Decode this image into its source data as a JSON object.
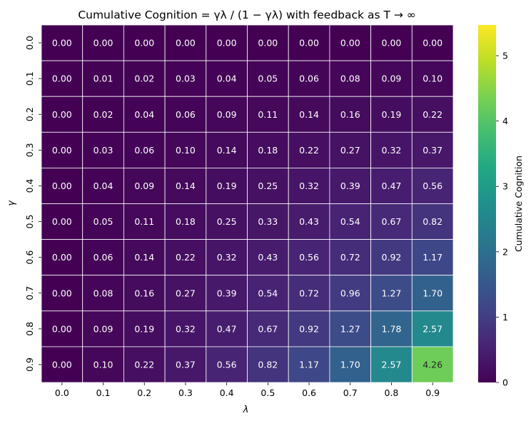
{
  "chart_data": {
    "type": "heatmap",
    "title": "Cumulative Cognition = γλ / (1 − γλ) with feedback as T → ∞",
    "xlabel": "λ",
    "ylabel": "γ",
    "x_categories": [
      "0.0",
      "0.1",
      "0.2",
      "0.3",
      "0.4",
      "0.5",
      "0.6",
      "0.7",
      "0.8",
      "0.9"
    ],
    "y_categories": [
      "0.0",
      "0.1",
      "0.2",
      "0.3",
      "0.4",
      "0.5",
      "0.6",
      "0.7",
      "0.8",
      "0.9"
    ],
    "values": [
      [
        0.0,
        0.0,
        0.0,
        0.0,
        0.0,
        0.0,
        0.0,
        0.0,
        0.0,
        0.0
      ],
      [
        0.0,
        0.01,
        0.02,
        0.03,
        0.04,
        0.05,
        0.06,
        0.08,
        0.09,
        0.1
      ],
      [
        0.0,
        0.02,
        0.04,
        0.06,
        0.09,
        0.11,
        0.14,
        0.16,
        0.19,
        0.22
      ],
      [
        0.0,
        0.03,
        0.06,
        0.1,
        0.14,
        0.18,
        0.22,
        0.27,
        0.32,
        0.37
      ],
      [
        0.0,
        0.04,
        0.09,
        0.14,
        0.19,
        0.25,
        0.32,
        0.39,
        0.47,
        0.56
      ],
      [
        0.0,
        0.05,
        0.11,
        0.18,
        0.25,
        0.33,
        0.43,
        0.54,
        0.67,
        0.82
      ],
      [
        0.0,
        0.06,
        0.14,
        0.22,
        0.32,
        0.43,
        0.56,
        0.72,
        0.92,
        1.17
      ],
      [
        0.0,
        0.08,
        0.16,
        0.27,
        0.39,
        0.54,
        0.72,
        0.96,
        1.27,
        1.7
      ],
      [
        0.0,
        0.09,
        0.19,
        0.32,
        0.47,
        0.67,
        0.92,
        1.27,
        1.78,
        2.57
      ],
      [
        0.0,
        0.1,
        0.22,
        0.37,
        0.56,
        0.82,
        1.17,
        1.7,
        2.57,
        4.26
      ]
    ],
    "colorbar": {
      "label": "Cumulative Cognition",
      "ticks": [
        0,
        1,
        2,
        3,
        4,
        5
      ],
      "vmin": 0,
      "vmax": 5.47
    },
    "colormap": "viridis",
    "annotation_text_colors": {
      "dark_bg": "#ffffff",
      "light_bg": "#262626"
    }
  }
}
